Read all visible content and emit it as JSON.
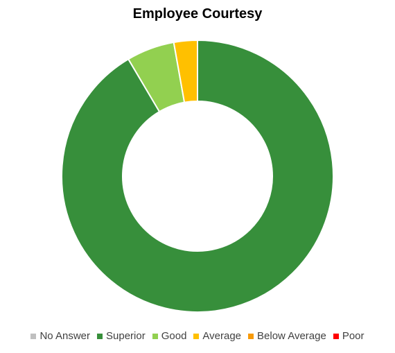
{
  "chart_data": {
    "type": "pie",
    "donut": true,
    "title": "Employee Courtesy",
    "legend_position": "bottom",
    "categories": [
      "No Answer",
      "Superior",
      "Good",
      "Average",
      "Below Average",
      "Poor"
    ],
    "values": [
      0,
      91.5,
      5.7,
      2.8,
      0,
      0
    ],
    "colors": [
      "#BFBFBF",
      "#378F3B",
      "#92D050",
      "#FFC000",
      "#F79A09",
      "#FF0000"
    ]
  }
}
